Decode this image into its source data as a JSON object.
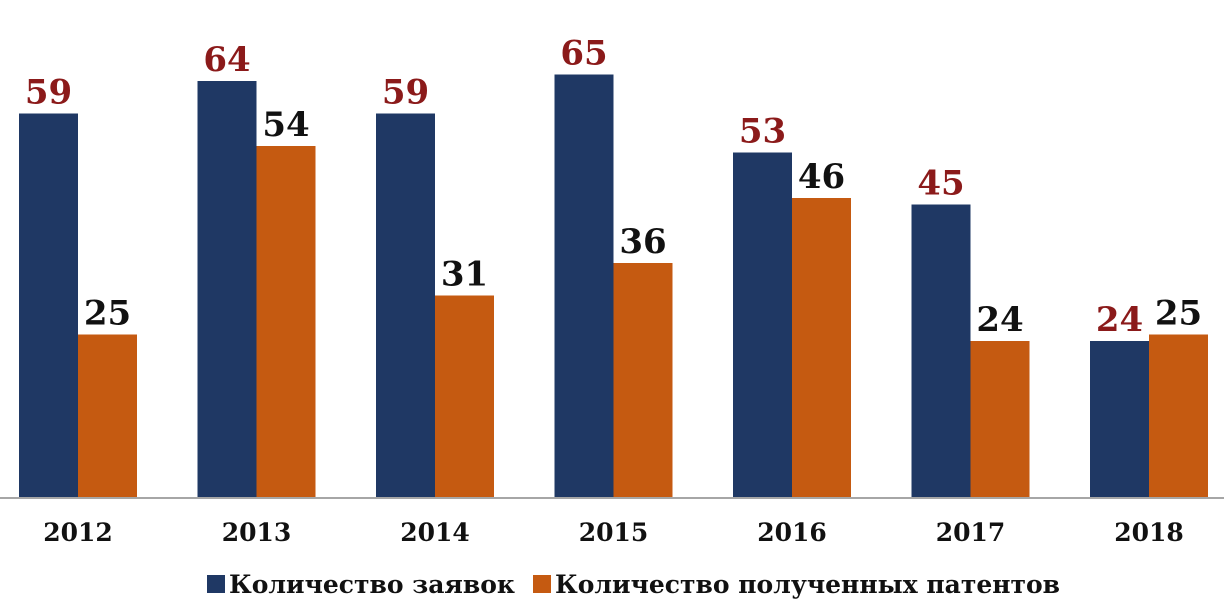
{
  "chart_data": {
    "type": "bar",
    "categories": [
      "2012",
      "2013",
      "2014",
      "2015",
      "2016",
      "2017",
      "2018"
    ],
    "series": [
      {
        "name": "Количество заявок",
        "values": [
          59,
          64,
          59,
          65,
          53,
          45,
          24
        ],
        "color": "#1f3864",
        "label_color": "#8b1a1a"
      },
      {
        "name": "Количество полученных патентов",
        "values": [
          25,
          54,
          31,
          36,
          46,
          24,
          25
        ],
        "color": "#c55a11",
        "label_color": "#111111"
      }
    ],
    "title": "",
    "xlabel": "",
    "ylabel": "",
    "ylim": [
      0,
      70
    ],
    "grid": false,
    "data_labels": true,
    "legend_position": "bottom",
    "axis_color": "#a6a6a6"
  }
}
